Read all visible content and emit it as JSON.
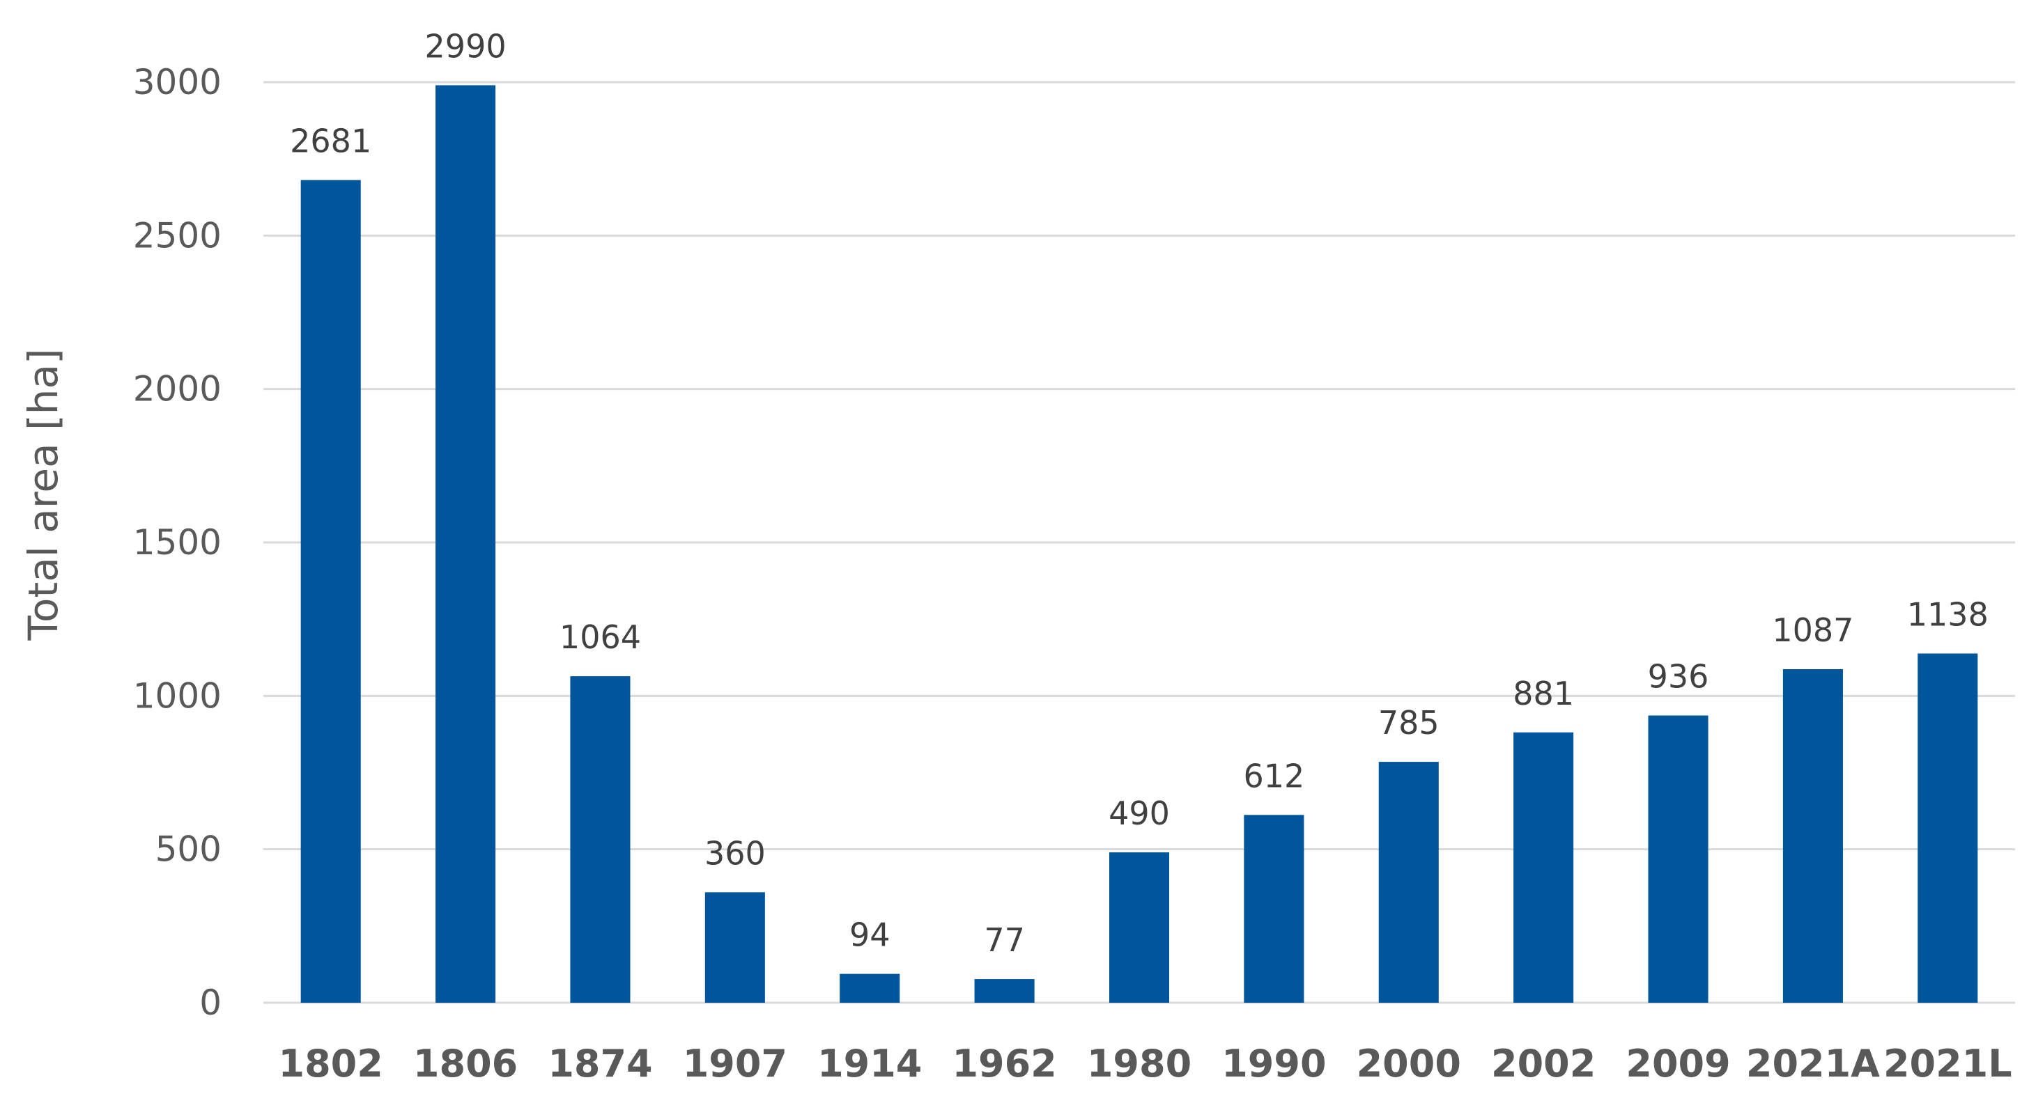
{
  "chart_data": {
    "type": "bar",
    "title": "",
    "xlabel": "",
    "ylabel": "Total area [ha]",
    "categories": [
      "1802",
      "1806",
      "1874",
      "1907",
      "1914",
      "1962",
      "1980",
      "1990",
      "2000",
      "2002",
      "2009",
      "2021A",
      "2021L"
    ],
    "values": [
      2681,
      2990,
      1064,
      360,
      94,
      77,
      490,
      612,
      785,
      881,
      936,
      1087,
      1138
    ],
    "ylim": [
      0,
      3000
    ],
    "yticks": [
      0,
      500,
      1000,
      1500,
      2000,
      2500,
      3000
    ],
    "grid": true,
    "legend": "none",
    "data_labels": true,
    "colors": {
      "bar": "#00559B",
      "grid": "#D9D9D9",
      "axis": "#D9D9D9",
      "text": "#595959",
      "data_label": "#404040"
    }
  }
}
